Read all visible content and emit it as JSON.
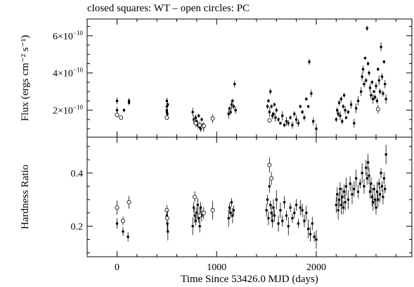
{
  "chart_data": {
    "type": "scatter",
    "title": "closed squares: WT – open circles: PC",
    "xlabel": "Time Since 53426.0 MJD (days)",
    "xlim": [
      -300,
      2960
    ],
    "x_ticks": [
      0,
      1000,
      2000
    ],
    "panels": [
      {
        "name": "flux",
        "ylabel": "Flux (ergs cm⁻² s⁻¹)",
        "ylim": [
          5.5e-11,
          6.9e-10
        ],
        "y_ticks": [
          {
            "value": 2e-10,
            "mantissa": "2×10",
            "exp": "−10"
          },
          {
            "value": 4e-10,
            "mantissa": "4×10",
            "exp": "−10"
          },
          {
            "value": 6e-10,
            "mantissa": "6×10",
            "exp": "−10"
          }
        ],
        "series": [
          {
            "marker": "closed-square",
            "points": [
              [
                0,
                2.5
              ],
              [
                0,
                2.0
              ],
              [
                70,
                2.0
              ],
              [
                120,
                2.4
              ],
              [
                120,
                2.5
              ],
              [
                500,
                2.5
              ],
              [
                500,
                2.2
              ],
              [
                500,
                2.0
              ],
              [
                500,
                1.9
              ],
              [
                505,
                1.8
              ],
              [
                510,
                2.3
              ],
              [
                760,
                1.9
              ],
              [
                770,
                1.5
              ],
              [
                780,
                1.3
              ],
              [
                790,
                1.6
              ],
              [
                800,
                1.4
              ],
              [
                810,
                1.2
              ],
              [
                820,
                1.7
              ],
              [
                830,
                1.1
              ],
              [
                840,
                1.0
              ],
              [
                850,
                1.5
              ],
              [
                860,
                1.2
              ],
              [
                870,
                1.1
              ],
              [
                1120,
                1.8
              ],
              [
                1130,
                2.1
              ],
              [
                1140,
                1.9
              ],
              [
                1150,
                2.3
              ],
              [
                1160,
                2.5
              ],
              [
                1170,
                2.2
              ],
              [
                1180,
                3.4
              ],
              [
                1190,
                2.0
              ],
              [
                1510,
                2.2
              ],
              [
                1520,
                2.5
              ],
              [
                1530,
                1.9
              ],
              [
                1540,
                3.0
              ],
              [
                1550,
                2.2
              ],
              [
                1560,
                1.7
              ],
              [
                1570,
                1.8
              ],
              [
                1580,
                2.3
              ],
              [
                1590,
                1.6
              ],
              [
                1600,
                2.0
              ],
              [
                1620,
                1.5
              ],
              [
                1640,
                1.3
              ],
              [
                1660,
                1.7
              ],
              [
                1680,
                1.2
              ],
              [
                1700,
                1.4
              ],
              [
                1720,
                1.3
              ],
              [
                1740,
                1.6
              ],
              [
                1760,
                1.2
              ],
              [
                1780,
                1.8
              ],
              [
                1800,
                1.5
              ],
              [
                1820,
                1.3
              ],
              [
                1840,
                2.2
              ],
              [
                1860,
                1.9
              ],
              [
                1880,
                1.6
              ],
              [
                1900,
                2.6
              ],
              [
                1920,
                2.2
              ],
              [
                1930,
                4.6
              ],
              [
                1950,
                2.9
              ],
              [
                1970,
                1.4
              ],
              [
                2000,
                1.0
              ],
              [
                2200,
                1.5
              ],
              [
                2210,
                2.0
              ],
              [
                2220,
                1.8
              ],
              [
                2230,
                2.4
              ],
              [
                2240,
                1.7
              ],
              [
                2250,
                2.6
              ],
              [
                2260,
                1.4
              ],
              [
                2270,
                2.2
              ],
              [
                2280,
                2.8
              ],
              [
                2290,
                2.0
              ],
              [
                2300,
                1.6
              ],
              [
                2320,
                1.9
              ],
              [
                2350,
                2.3
              ],
              [
                2380,
                1.3
              ],
              [
                2400,
                2.1
              ],
              [
                2420,
                2.5
              ],
              [
                2450,
                3.0
              ],
              [
                2460,
                3.8
              ],
              [
                2470,
                4.2
              ],
              [
                2480,
                3.4
              ],
              [
                2490,
                4.8
              ],
              [
                2500,
                3.6
              ],
              [
                2510,
                6.4
              ],
              [
                2520,
                4.5
              ],
              [
                2530,
                4.0
              ],
              [
                2540,
                3.2
              ],
              [
                2550,
                2.8
              ],
              [
                2560,
                3.5
              ],
              [
                2570,
                2.6
              ],
              [
                2580,
                3.0
              ],
              [
                2590,
                2.7
              ],
              [
                2600,
                3.3
              ],
              [
                2610,
                2.5
              ],
              [
                2620,
                4.2
              ],
              [
                2630,
                3.6
              ],
              [
                2640,
                3.0
              ],
              [
                2650,
                5.4
              ],
              [
                2660,
                3.8
              ],
              [
                2670,
                2.9
              ],
              [
                2680,
                4.6
              ],
              [
                2690,
                3.4
              ],
              [
                2700,
                2.6
              ]
            ]
          },
          {
            "marker": "open-circle",
            "points": [
              [
                0,
                1.75
              ],
              [
                40,
                1.6
              ],
              [
                500,
                1.6
              ],
              [
                790,
                1.3
              ],
              [
                830,
                1.2
              ],
              [
                870,
                1.15
              ],
              [
                960,
                1.55
              ],
              [
                1530,
                1.45
              ],
              [
                2620,
                2.05
              ]
            ]
          }
        ]
      },
      {
        "name": "hardness",
        "ylabel": "Hardness Ratio",
        "ylim": [
          0.085,
          0.535
        ],
        "y_ticks": [
          {
            "value": 0.2,
            "label": "0.2"
          },
          {
            "value": 0.4,
            "label": "0.4"
          }
        ],
        "series": [
          {
            "marker": "closed-square",
            "points": [
              [
                0,
                0.21
              ],
              [
                60,
                0.18
              ],
              [
                110,
                0.16
              ],
              [
                500,
                0.24
              ],
              [
                505,
                0.21
              ],
              [
                510,
                0.18
              ],
              [
                760,
                0.2
              ],
              [
                770,
                0.27
              ],
              [
                780,
                0.24
              ],
              [
                790,
                0.22
              ],
              [
                800,
                0.25
              ],
              [
                810,
                0.28
              ],
              [
                820,
                0.23
              ],
              [
                830,
                0.2
              ],
              [
                840,
                0.27
              ],
              [
                850,
                0.24
              ],
              [
                1120,
                0.23
              ],
              [
                1130,
                0.27
              ],
              [
                1140,
                0.25
              ],
              [
                1150,
                0.29
              ],
              [
                1160,
                0.24
              ],
              [
                1170,
                0.26
              ],
              [
                1500,
                0.26
              ],
              [
                1510,
                0.3
              ],
              [
                1520,
                0.23
              ],
              [
                1530,
                0.35
              ],
              [
                1540,
                0.28
              ],
              [
                1550,
                0.25
              ],
              [
                1560,
                0.22
              ],
              [
                1570,
                0.27
              ],
              [
                1580,
                0.24
              ],
              [
                1600,
                0.3
              ],
              [
                1620,
                0.21
              ],
              [
                1640,
                0.26
              ],
              [
                1660,
                0.22
              ],
              [
                1680,
                0.29
              ],
              [
                1700,
                0.24
              ],
              [
                1720,
                0.2
              ],
              [
                1740,
                0.27
              ],
              [
                1760,
                0.23
              ],
              [
                1780,
                0.25
              ],
              [
                1800,
                0.28
              ],
              [
                1820,
                0.21
              ],
              [
                1840,
                0.27
              ],
              [
                1860,
                0.26
              ],
              [
                1880,
                0.22
              ],
              [
                1900,
                0.25
              ],
              [
                1920,
                0.19
              ],
              [
                1940,
                0.17
              ],
              [
                1960,
                0.21
              ],
              [
                1980,
                0.16
              ],
              [
                2000,
                0.15
              ],
              [
                2200,
                0.28
              ],
              [
                2210,
                0.32
              ],
              [
                2220,
                0.26
              ],
              [
                2230,
                0.3
              ],
              [
                2240,
                0.34
              ],
              [
                2250,
                0.28
              ],
              [
                2260,
                0.31
              ],
              [
                2270,
                0.27
              ],
              [
                2280,
                0.33
              ],
              [
                2290,
                0.29
              ],
              [
                2300,
                0.35
              ],
              [
                2320,
                0.3
              ],
              [
                2340,
                0.36
              ],
              [
                2360,
                0.32
              ],
              [
                2380,
                0.34
              ],
              [
                2400,
                0.38
              ],
              [
                2420,
                0.33
              ],
              [
                2440,
                0.36
              ],
              [
                2460,
                0.4
              ],
              [
                2480,
                0.35
              ],
              [
                2500,
                0.42
              ],
              [
                2510,
                0.38
              ],
              [
                2520,
                0.44
              ],
              [
                2530,
                0.39
              ],
              [
                2540,
                0.33
              ],
              [
                2550,
                0.36
              ],
              [
                2560,
                0.31
              ],
              [
                2570,
                0.29
              ],
              [
                2580,
                0.34
              ],
              [
                2590,
                0.3
              ],
              [
                2600,
                0.27
              ],
              [
                2610,
                0.33
              ],
              [
                2620,
                0.3
              ],
              [
                2630,
                0.36
              ],
              [
                2640,
                0.32
              ],
              [
                2650,
                0.4
              ],
              [
                2660,
                0.35
              ],
              [
                2670,
                0.31
              ],
              [
                2680,
                0.38
              ],
              [
                2690,
                0.34
              ],
              [
                2700,
                0.47
              ]
            ]
          },
          {
            "marker": "open-circle",
            "points": [
              [
                0,
                0.27
              ],
              [
                60,
                0.22
              ],
              [
                120,
                0.29
              ],
              [
                500,
                0.26
              ],
              [
                505,
                0.23
              ],
              [
                780,
                0.31
              ],
              [
                830,
                0.24
              ],
              [
                870,
                0.25
              ],
              [
                960,
                0.26
              ],
              [
                1530,
                0.43
              ],
              [
                1550,
                0.38
              ]
            ]
          }
        ]
      }
    ]
  }
}
